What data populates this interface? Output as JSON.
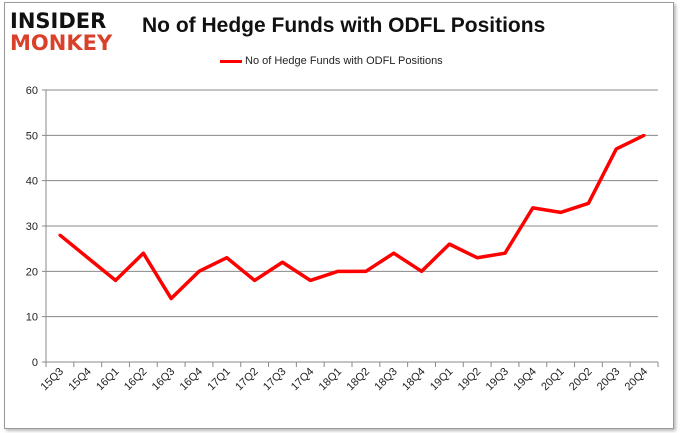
{
  "logo": {
    "line1": "INSIDER",
    "line2": "MONKEY"
  },
  "chart_data": {
    "type": "line",
    "title": "No of Hedge Funds with ODFL Positions",
    "xlabel": "",
    "ylabel": "",
    "categories": [
      "15Q3",
      "15Q4",
      "16Q1",
      "16Q2",
      "16Q3",
      "16Q4",
      "17Q1",
      "17Q2",
      "17Q3",
      "17Q4",
      "18Q1",
      "18Q2",
      "18Q3",
      "18Q4",
      "19Q1",
      "19Q2",
      "19Q3",
      "19Q4",
      "20Q1",
      "20Q2",
      "20Q3",
      "20Q4"
    ],
    "series": [
      {
        "name": "No of Hedge Funds with ODFL Positions",
        "color": "#ff0000",
        "values": [
          28,
          23,
          18,
          24,
          14,
          20,
          23,
          18,
          22,
          18,
          20,
          20,
          24,
          20,
          26,
          23,
          24,
          34,
          33,
          35,
          47,
          50
        ]
      }
    ],
    "ylim": [
      0,
      60
    ],
    "yticks": [
      0,
      10,
      20,
      30,
      40,
      50,
      60
    ],
    "grid": true,
    "legend": "top-center"
  }
}
